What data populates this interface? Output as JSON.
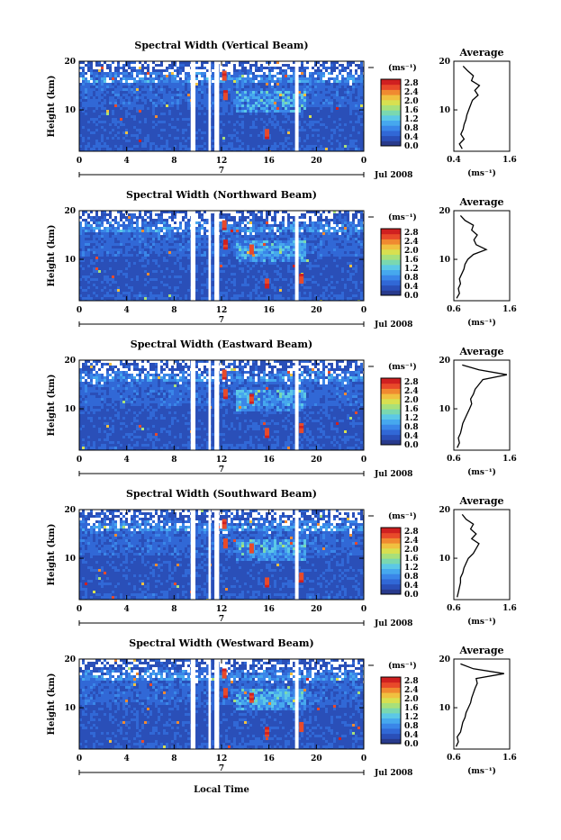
{
  "x_axis_label": "Local Time",
  "date_label": "Jul 2008",
  "day_label": "7",
  "colorbar_unit": "(ms⁻¹)",
  "average_title": "Average",
  "average_unit": "(ms⁻¹)",
  "height_label": "Height (km)",
  "colormap": [
    "#283a8c",
    "#2a4fb8",
    "#3168d6",
    "#3a86e8",
    "#46a8ee",
    "#5cc8e6",
    "#7ad8b0",
    "#a8e07a",
    "#d8e050",
    "#f0c040",
    "#f08a30",
    "#e84a2a",
    "#d02020"
  ],
  "chart_data": [
    {
      "type": "heatmap",
      "title": "Spectral Width (Vertical Beam)",
      "xlabel": "Local Time",
      "ylabel": "Height (km)",
      "xlim": [
        0,
        24
      ],
      "ylim": [
        1.5,
        20
      ],
      "xticks": [
        "0",
        "4",
        "8",
        "12",
        "16",
        "20",
        "0"
      ],
      "yticks": [
        "10",
        "20"
      ],
      "colorbar_ticks": [
        "2.8",
        "2.4",
        "2.0",
        "1.6",
        "1.2",
        "0.8",
        "0.4",
        "0.0"
      ],
      "gaps_hours": [
        [
          9.4,
          9.8
        ],
        [
          10.9,
          11.1
        ],
        [
          11.4,
          11.8
        ],
        [
          18.2,
          18.5
        ]
      ],
      "average": {
        "xlim": [
          0.4,
          1.6
        ],
        "xtick_labels": [
          "0.4",
          "1.6"
        ],
        "ylim": [
          1.5,
          20
        ],
        "ytick_labels": [
          "10",
          "20"
        ],
        "height": [
          2,
          3,
          4,
          5,
          6,
          7,
          8,
          9,
          10,
          11,
          12,
          13,
          14,
          15,
          16,
          17,
          18,
          19
        ],
        "value": [
          0.58,
          0.52,
          0.62,
          0.55,
          0.6,
          0.62,
          0.66,
          0.68,
          0.72,
          0.76,
          0.8,
          0.92,
          0.85,
          0.95,
          0.78,
          0.82,
          0.7,
          0.6
        ]
      }
    },
    {
      "type": "heatmap",
      "title": "Spectral Width (Northward Beam)",
      "xlabel": "Local Time",
      "ylabel": "Height (km)",
      "xlim": [
        0,
        24
      ],
      "ylim": [
        1.5,
        20
      ],
      "xticks": [
        "0",
        "4",
        "8",
        "12",
        "16",
        "20",
        "0"
      ],
      "yticks": [
        "10",
        "20"
      ],
      "colorbar_ticks": [
        "2.8",
        "2.4",
        "2.0",
        "1.6",
        "1.2",
        "0.8",
        "0.4",
        "0.0"
      ],
      "gaps_hours": [
        [
          9.4,
          9.8
        ],
        [
          10.9,
          11.1
        ],
        [
          11.4,
          11.8
        ],
        [
          18.2,
          18.5
        ]
      ],
      "average": {
        "xlim": [
          0.6,
          1.6
        ],
        "xtick_labels": [
          "0.6",
          "1.6"
        ],
        "ylim": [
          1.5,
          20
        ],
        "ytick_labels": [
          "10",
          "20"
        ],
        "height": [
          2,
          3,
          4,
          5,
          6,
          7,
          8,
          9,
          10,
          11,
          12,
          13,
          14,
          15,
          16,
          17,
          18,
          19
        ],
        "value": [
          0.65,
          0.7,
          0.68,
          0.72,
          0.7,
          0.74,
          0.78,
          0.8,
          0.85,
          0.95,
          1.18,
          1.0,
          0.96,
          1.02,
          0.92,
          0.95,
          0.8,
          0.72
        ]
      }
    },
    {
      "type": "heatmap",
      "title": "Spectral Width (Eastward Beam)",
      "xlabel": "Local Time",
      "ylabel": "Height (km)",
      "xlim": [
        0,
        24
      ],
      "ylim": [
        1.5,
        20
      ],
      "xticks": [
        "0",
        "4",
        "8",
        "12",
        "16",
        "20",
        "0"
      ],
      "yticks": [
        "10",
        "20"
      ],
      "colorbar_ticks": [
        "2.8",
        "2.4",
        "2.0",
        "1.6",
        "1.2",
        "0.8",
        "0.4",
        "0.0"
      ],
      "gaps_hours": [
        [
          9.4,
          9.8
        ],
        [
          10.9,
          11.1
        ],
        [
          11.4,
          11.8
        ],
        [
          18.2,
          18.5
        ]
      ],
      "average": {
        "xlim": [
          0.6,
          1.6
        ],
        "xtick_labels": [
          "0.6",
          "1.6"
        ],
        "ylim": [
          1.5,
          20
        ],
        "ytick_labels": [
          "10",
          "20"
        ],
        "height": [
          2,
          3,
          4,
          5,
          6,
          7,
          8,
          9,
          10,
          11,
          12,
          13,
          14,
          15,
          16,
          17,
          18,
          19
        ],
        "value": [
          0.66,
          0.7,
          0.68,
          0.72,
          0.74,
          0.76,
          0.8,
          0.84,
          0.88,
          0.92,
          0.9,
          0.95,
          0.98,
          1.05,
          1.12,
          1.55,
          1.05,
          0.75
        ]
      }
    },
    {
      "type": "heatmap",
      "title": "Spectral Width (Southward Beam)",
      "xlabel": "Local Time",
      "ylabel": "Height (km)",
      "xlim": [
        0,
        24
      ],
      "ylim": [
        1.5,
        20
      ],
      "xticks": [
        "0",
        "4",
        "8",
        "12",
        "16",
        "20",
        "0"
      ],
      "yticks": [
        "10",
        "20"
      ],
      "colorbar_ticks": [
        "2.8",
        "2.4",
        "2.0",
        "1.6",
        "1.2",
        "0.8",
        "0.4",
        "0.0"
      ],
      "gaps_hours": [
        [
          9.4,
          9.8
        ],
        [
          10.9,
          11.1
        ],
        [
          11.4,
          11.8
        ],
        [
          18.2,
          18.5
        ]
      ],
      "average": {
        "xlim": [
          0.6,
          1.6
        ],
        "xtick_labels": [
          "0.6",
          "1.6"
        ],
        "ylim": [
          1.5,
          20
        ],
        "ytick_labels": [
          "10",
          "20"
        ],
        "height": [
          2,
          3,
          4,
          5,
          6,
          7,
          8,
          9,
          10,
          11,
          12,
          13,
          14,
          15,
          16,
          17,
          18,
          19
        ],
        "value": [
          0.66,
          0.68,
          0.7,
          0.72,
          0.72,
          0.76,
          0.78,
          0.82,
          0.86,
          0.95,
          1.0,
          1.05,
          0.92,
          1.0,
          0.9,
          0.95,
          0.82,
          0.75
        ]
      }
    },
    {
      "type": "heatmap",
      "title": "Spectral Width (Westward Beam)",
      "xlabel": "Local Time",
      "ylabel": "Height (km)",
      "xlim": [
        0,
        24
      ],
      "ylim": [
        1.5,
        20
      ],
      "xticks": [
        "0",
        "4",
        "8",
        "12",
        "16",
        "20",
        "0"
      ],
      "yticks": [
        "10",
        "20"
      ],
      "colorbar_ticks": [
        "2.8",
        "2.4",
        "2.0",
        "1.6",
        "1.2",
        "0.8",
        "0.4",
        "0.0"
      ],
      "gaps_hours": [
        [
          9.4,
          9.8
        ],
        [
          10.9,
          11.1
        ],
        [
          11.4,
          11.8
        ],
        [
          18.2,
          18.5
        ]
      ],
      "average": {
        "xlim": [
          0.6,
          1.6
        ],
        "xtick_labels": [
          "0.6",
          "1.6"
        ],
        "ylim": [
          1.5,
          20
        ],
        "ytick_labels": [
          "10",
          "20"
        ],
        "height": [
          2,
          3,
          4,
          5,
          6,
          7,
          8,
          9,
          10,
          11,
          12,
          13,
          14,
          15,
          16,
          17,
          18,
          19
        ],
        "value": [
          0.64,
          0.68,
          0.66,
          0.72,
          0.74,
          0.76,
          0.8,
          0.82,
          0.86,
          0.9,
          0.92,
          0.95,
          0.98,
          1.02,
          1.0,
          1.5,
          0.95,
          0.72
        ]
      }
    }
  ]
}
